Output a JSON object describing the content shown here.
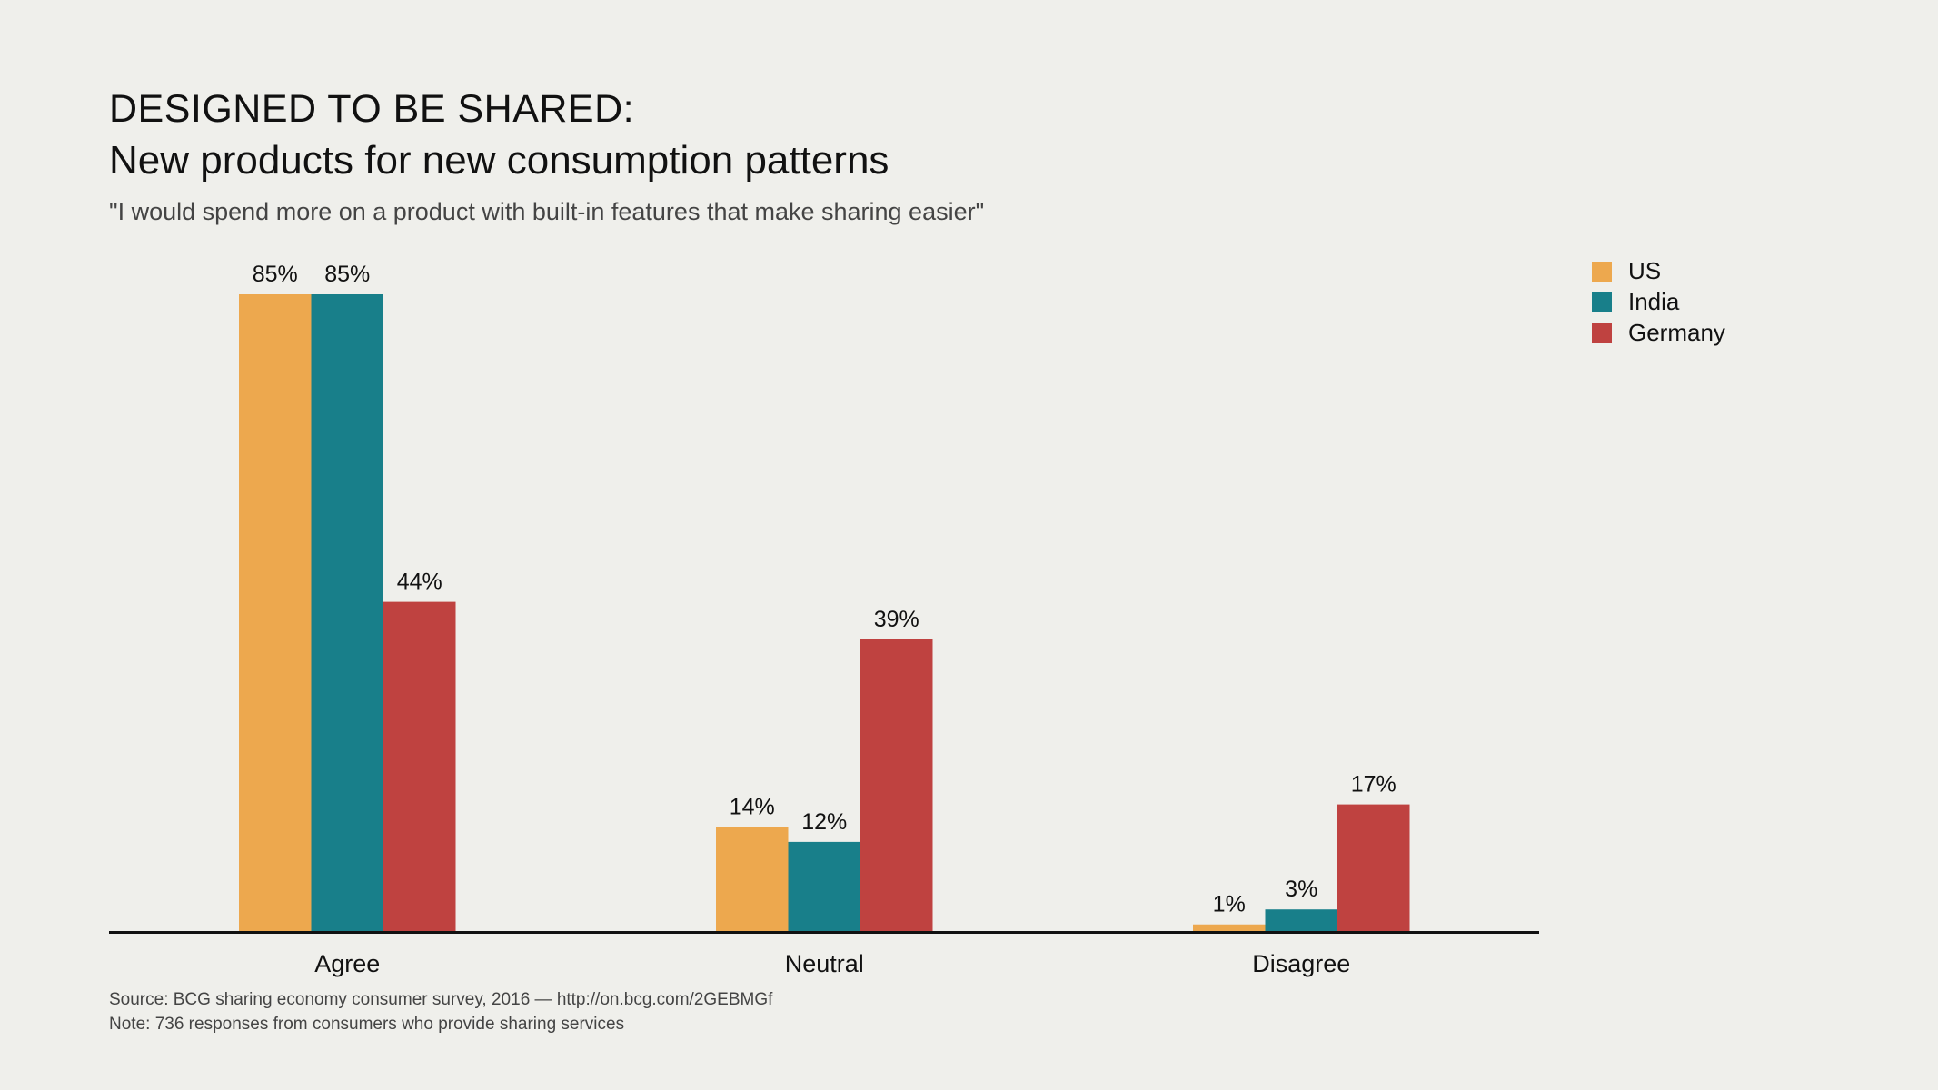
{
  "chart_data": {
    "type": "bar",
    "title": "DESIGNED TO BE SHARED:",
    "subtitle": "New products for new consumption patterns",
    "question": "\"I would spend more on a product with built-in features that make sharing easier\"",
    "categories": [
      "Agree",
      "Neutral",
      "Disagree"
    ],
    "series": [
      {
        "name": "US",
        "color": "#eda84e",
        "values": [
          85,
          14,
          1
        ]
      },
      {
        "name": "India",
        "color": "#187f8a",
        "values": [
          85,
          12,
          3
        ]
      },
      {
        "name": "Germany",
        "color": "#bf4240",
        "values": [
          44,
          39,
          17
        ]
      }
    ],
    "value_suffix": "%",
    "ylim": [
      0,
      85
    ],
    "grid": false,
    "legend": "top-right",
    "xlabel": "",
    "ylabel": ""
  },
  "footer": {
    "source": "Source: BCG sharing economy consumer survey, 2016 — http://on.bcg.com/2GEBMGf",
    "note": "Note: 736 responses from consumers who provide sharing services"
  }
}
